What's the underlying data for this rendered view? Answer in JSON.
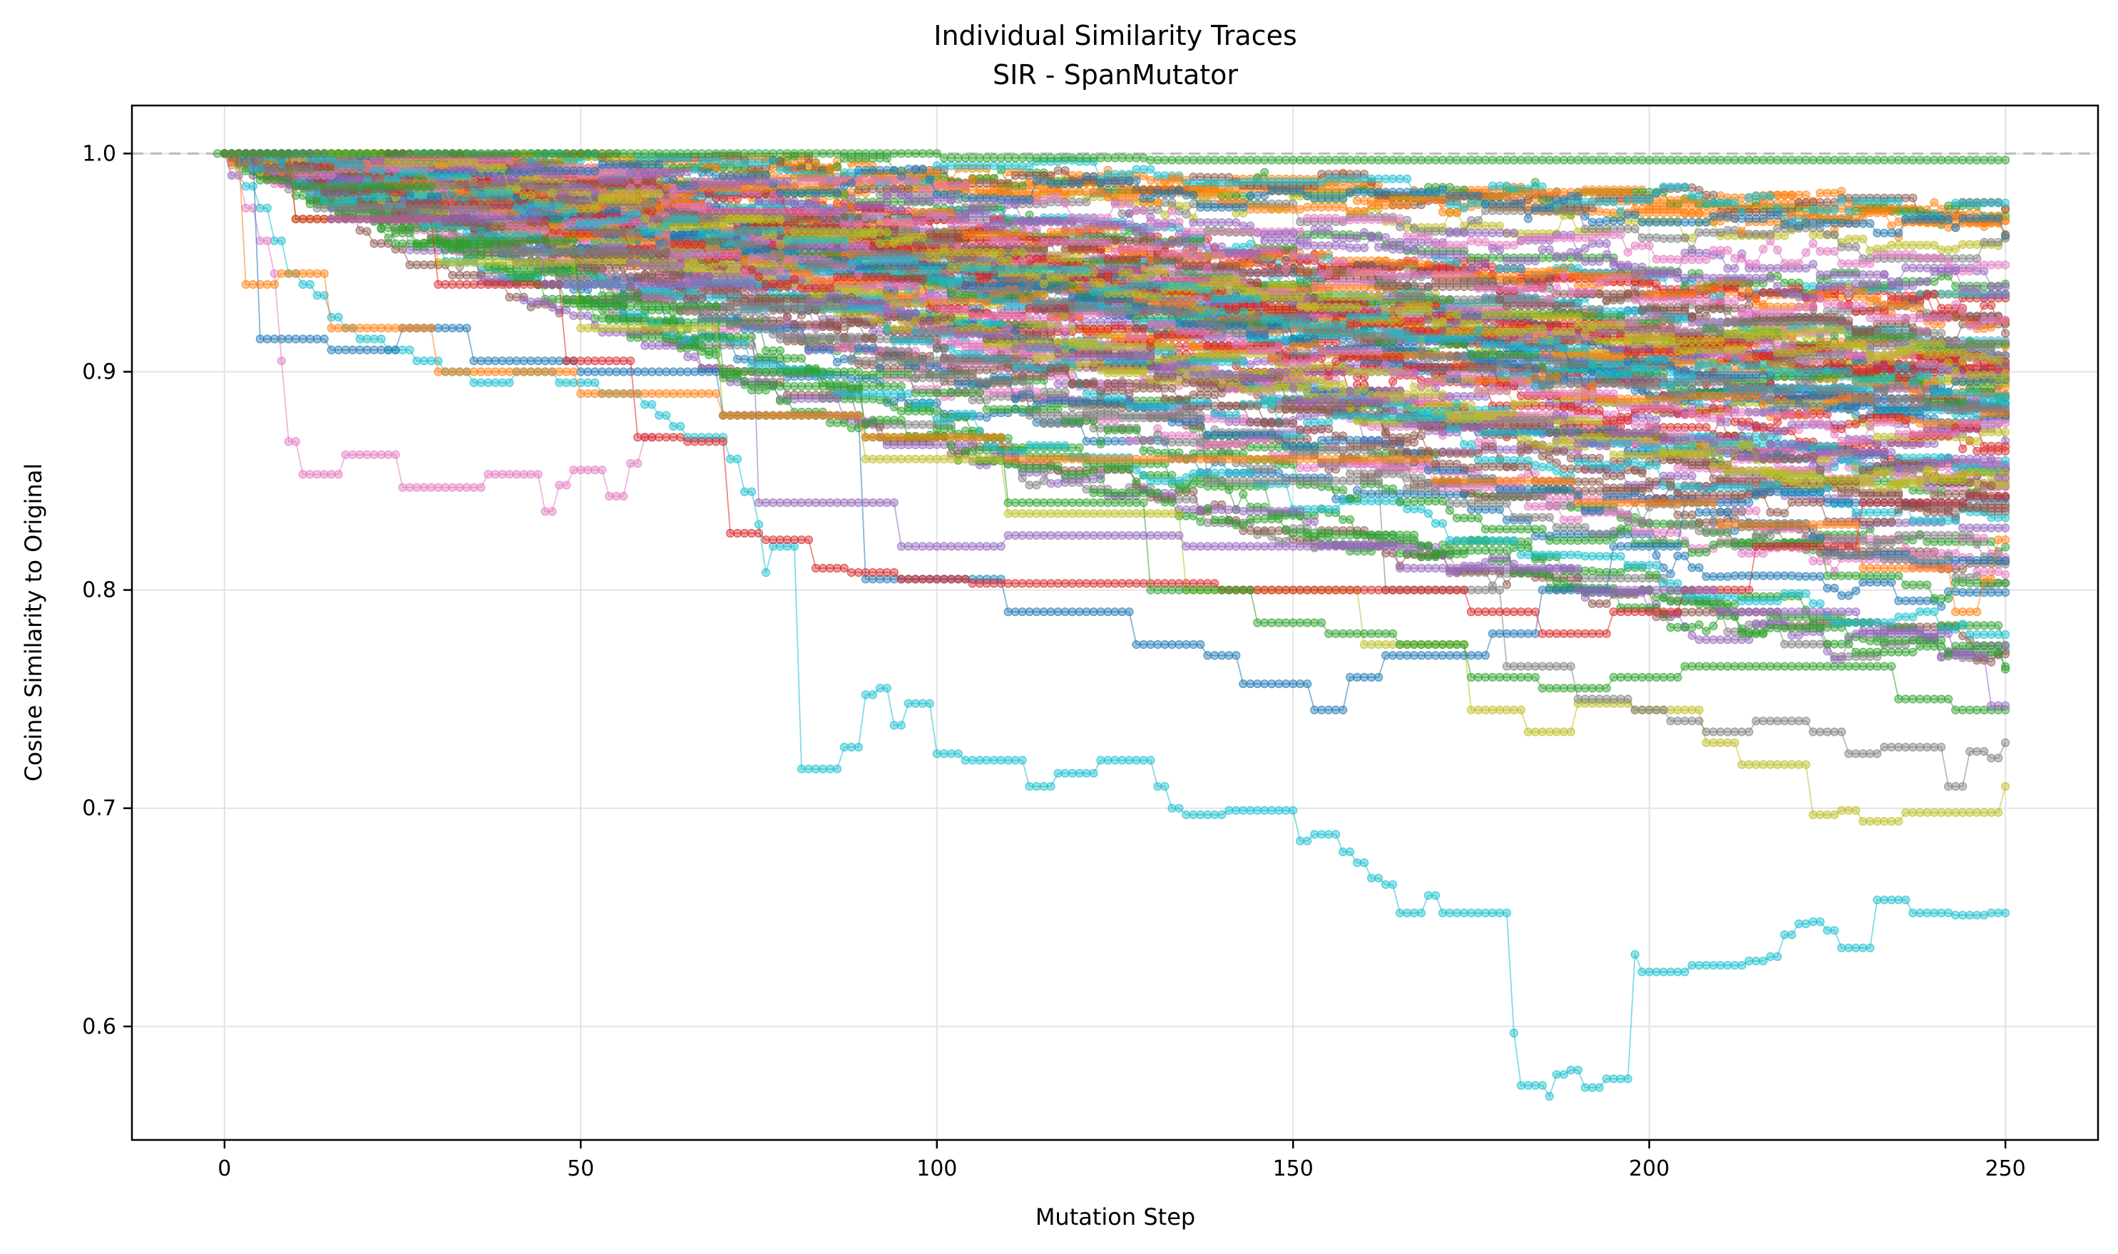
{
  "chart_data": {
    "type": "line",
    "title": "Individual Similarity Traces",
    "subtitle": "SIR - SpanMutator",
    "xlabel": "Mutation Step",
    "ylabel": "Cosine Similarity to Original",
    "xlim": [
      -13,
      263
    ],
    "ylim": [
      0.548,
      1.022
    ],
    "xticks": [
      0,
      50,
      100,
      150,
      200,
      250
    ],
    "yticks": [
      0.6,
      0.7,
      0.8,
      0.9,
      1.0
    ],
    "ytick_labels": [
      "0.6",
      "0.7",
      "0.8",
      "0.9",
      "1.0"
    ],
    "grid": true,
    "reference_line": {
      "y": 1.0,
      "style": "dashed",
      "color": "#bbbbbb"
    },
    "series_count": 100,
    "palette": [
      "#1f77b4",
      "#ff7f0e",
      "#2ca02c",
      "#d62728",
      "#9467bd",
      "#8c564b",
      "#e377c2",
      "#7f7f7f",
      "#bcbd22",
      "#17becf"
    ],
    "trace_anchors": {
      "x": [
        0,
        25,
        50,
        75,
        100,
        125,
        150,
        175,
        200,
        225,
        250
      ],
      "percentiles": [
        0.05,
        0.25,
        0.5,
        0.75,
        0.95
      ],
      "values": [
        [
          1.0,
          0.955,
          0.925,
          0.89,
          0.865,
          0.845,
          0.825,
          0.81,
          0.79,
          0.775,
          0.765
        ],
        [
          1.0,
          0.975,
          0.955,
          0.935,
          0.915,
          0.9,
          0.885,
          0.87,
          0.86,
          0.85,
          0.845
        ],
        [
          1.0,
          0.985,
          0.97,
          0.955,
          0.94,
          0.93,
          0.915,
          0.905,
          0.895,
          0.89,
          0.885
        ],
        [
          1.0,
          0.993,
          0.983,
          0.972,
          0.962,
          0.952,
          0.945,
          0.938,
          0.93,
          0.925,
          0.92
        ],
        [
          1.0,
          0.998,
          0.995,
          0.992,
          0.99,
          0.988,
          0.985,
          0.982,
          0.978,
          0.975,
          0.972
        ]
      ]
    },
    "highlighted_traces": [
      {
        "color": "#17becf",
        "x": [
          0,
          2,
          4,
          6,
          8,
          10,
          12,
          14,
          16,
          18,
          20,
          22,
          24,
          26,
          28,
          30,
          32,
          34,
          36,
          38,
          40,
          42,
          44,
          46,
          48,
          50,
          52,
          54,
          56,
          58,
          60,
          62,
          64,
          66,
          68,
          70,
          72,
          74,
          75,
          76,
          77,
          78,
          80,
          81,
          85,
          88,
          91,
          93,
          95,
          97,
          99,
          101,
          103,
          105,
          110,
          115,
          118,
          120,
          125,
          130,
          132,
          134,
          136,
          138,
          140,
          142,
          145,
          150,
          152,
          154,
          156,
          158,
          160,
          162,
          164,
          166,
          168,
          170,
          172,
          175,
          180,
          181,
          182,
          185,
          186,
          187,
          190,
          191,
          192,
          195,
          197,
          198,
          199,
          203,
          208,
          212,
          215,
          218,
          220,
          222,
          224,
          225,
          229,
          230,
          234,
          240,
          245,
          250
        ],
        "y": [
          1.0,
          0.99,
          0.985,
          0.975,
          0.96,
          0.945,
          0.94,
          0.935,
          0.925,
          0.92,
          0.915,
          0.915,
          0.91,
          0.91,
          0.905,
          0.905,
          0.9,
          0.9,
          0.895,
          0.895,
          0.895,
          0.9,
          0.9,
          0.9,
          0.895,
          0.895,
          0.895,
          0.89,
          0.89,
          0.89,
          0.885,
          0.88,
          0.875,
          0.87,
          0.87,
          0.87,
          0.86,
          0.845,
          0.83,
          0.808,
          0.82,
          0.82,
          0.82,
          0.718,
          0.718,
          0.728,
          0.752,
          0.755,
          0.738,
          0.748,
          0.748,
          0.725,
          0.725,
          0.722,
          0.722,
          0.71,
          0.716,
          0.716,
          0.722,
          0.722,
          0.71,
          0.7,
          0.697,
          0.697,
          0.697,
          0.699,
          0.699,
          0.699,
          0.685,
          0.688,
          0.688,
          0.68,
          0.675,
          0.668,
          0.665,
          0.652,
          0.652,
          0.66,
          0.652,
          0.652,
          0.652,
          0.597,
          0.573,
          0.573,
          0.568,
          0.578,
          0.58,
          0.572,
          0.572,
          0.576,
          0.576,
          0.633,
          0.625,
          0.625,
          0.628,
          0.628,
          0.63,
          0.632,
          0.642,
          0.647,
          0.648,
          0.644,
          0.636,
          0.636,
          0.658,
          0.652,
          0.651,
          0.652
        ]
      },
      {
        "color": "#e377c2",
        "x": [
          0,
          2,
          4,
          6,
          7,
          8,
          9,
          10,
          12,
          14,
          16,
          18,
          20,
          22,
          24,
          26,
          28,
          30,
          34,
          36,
          38,
          40,
          42,
          44,
          46,
          48,
          50,
          52,
          55,
          58,
          60
        ],
        "y": [
          1.0,
          0.99,
          0.975,
          0.96,
          0.945,
          0.905,
          0.868,
          0.868,
          0.853,
          0.853,
          0.853,
          0.862,
          0.862,
          0.862,
          0.862,
          0.847,
          0.847,
          0.847,
          0.847,
          0.847,
          0.853,
          0.853,
          0.853,
          0.853,
          0.836,
          0.848,
          0.855,
          0.855,
          0.843,
          0.858,
          0.87
        ]
      },
      {
        "color": "#bcbd22",
        "x": [
          0,
          20,
          40,
          60,
          80,
          100,
          120,
          150,
          170,
          180,
          185,
          195,
          200,
          205,
          210,
          215,
          220,
          225,
          228,
          232,
          240,
          245,
          249,
          250
        ],
        "y": [
          1.0,
          0.97,
          0.95,
          0.92,
          0.88,
          0.86,
          0.835,
          0.8,
          0.775,
          0.745,
          0.735,
          0.748,
          0.745,
          0.745,
          0.73,
          0.72,
          0.72,
          0.697,
          0.699,
          0.694,
          0.698,
          0.698,
          0.698,
          0.71
        ]
      },
      {
        "color": "#7f7f7f",
        "x": [
          0,
          25,
          50,
          75,
          100,
          125,
          150,
          175,
          185,
          195,
          200,
          205,
          210,
          220,
          225,
          230,
          235,
          240,
          244,
          246,
          249,
          250
        ],
        "y": [
          1.0,
          0.975,
          0.955,
          0.93,
          0.905,
          0.88,
          0.85,
          0.8,
          0.765,
          0.75,
          0.745,
          0.74,
          0.735,
          0.74,
          0.735,
          0.725,
          0.728,
          0.728,
          0.71,
          0.726,
          0.723,
          0.73
        ]
      },
      {
        "color": "#1f77b4",
        "x": [
          0,
          10,
          20,
          30,
          40,
          60,
          80,
          100,
          120,
          135,
          140,
          145,
          150,
          155,
          160,
          165,
          170,
          175,
          180,
          190,
          200,
          210,
          220,
          230,
          240,
          250
        ],
        "y": [
          1.0,
          0.915,
          0.91,
          0.92,
          0.905,
          0.9,
          0.88,
          0.805,
          0.79,
          0.775,
          0.77,
          0.757,
          0.757,
          0.745,
          0.76,
          0.77,
          0.77,
          0.77,
          0.78,
          0.8,
          0.82,
          0.84,
          0.845,
          0.84,
          0.84,
          0.842
        ]
      },
      {
        "color": "#d62728",
        "x": [
          0,
          20,
          40,
          55,
          60,
          70,
          72,
          80,
          85,
          90,
          100,
          110,
          130,
          150,
          170,
          180,
          190,
          200,
          210,
          220,
          240,
          250
        ],
        "y": [
          1.0,
          0.97,
          0.94,
          0.905,
          0.87,
          0.868,
          0.826,
          0.823,
          0.81,
          0.808,
          0.805,
          0.803,
          0.803,
          0.8,
          0.8,
          0.79,
          0.78,
          0.79,
          0.8,
          0.82,
          0.84,
          0.843
        ]
      },
      {
        "color": "#2ca02c",
        "x": [
          0,
          20,
          40,
          60,
          80,
          100,
          120,
          140,
          150,
          160,
          170,
          180,
          190,
          200,
          210,
          220,
          230,
          240,
          245,
          250
        ],
        "y": [
          1.0,
          0.985,
          0.96,
          0.93,
          0.9,
          0.87,
          0.84,
          0.8,
          0.785,
          0.78,
          0.775,
          0.76,
          0.755,
          0.76,
          0.765,
          0.765,
          0.765,
          0.75,
          0.745,
          0.745
        ]
      },
      {
        "color": "#ff7f0e",
        "x": [
          0,
          5,
          10,
          20,
          40,
          60,
          80,
          100,
          120,
          140,
          160,
          180,
          200,
          220,
          240,
          245,
          248,
          250
        ],
        "y": [
          1.0,
          0.94,
          0.945,
          0.92,
          0.9,
          0.89,
          0.88,
          0.87,
          0.86,
          0.86,
          0.86,
          0.85,
          0.84,
          0.83,
          0.81,
          0.79,
          0.805,
          0.823
        ]
      },
      {
        "color": "#9467bd",
        "x": [
          0,
          30,
          60,
          90,
          100,
          120,
          150,
          180,
          200,
          220,
          240,
          245,
          250
        ],
        "y": [
          1.0,
          0.97,
          0.94,
          0.84,
          0.82,
          0.825,
          0.82,
          0.81,
          0.8,
          0.79,
          0.78,
          0.77,
          0.747
        ]
      },
      {
        "color": "#2ca02c",
        "x": [
          -1,
          10,
          30,
          60,
          92,
          110,
          150,
          200,
          250
        ],
        "y": [
          1.0,
          1.0,
          1.0,
          1.0,
          1.0,
          0.998,
          0.997,
          0.997,
          0.997
        ]
      }
    ]
  }
}
